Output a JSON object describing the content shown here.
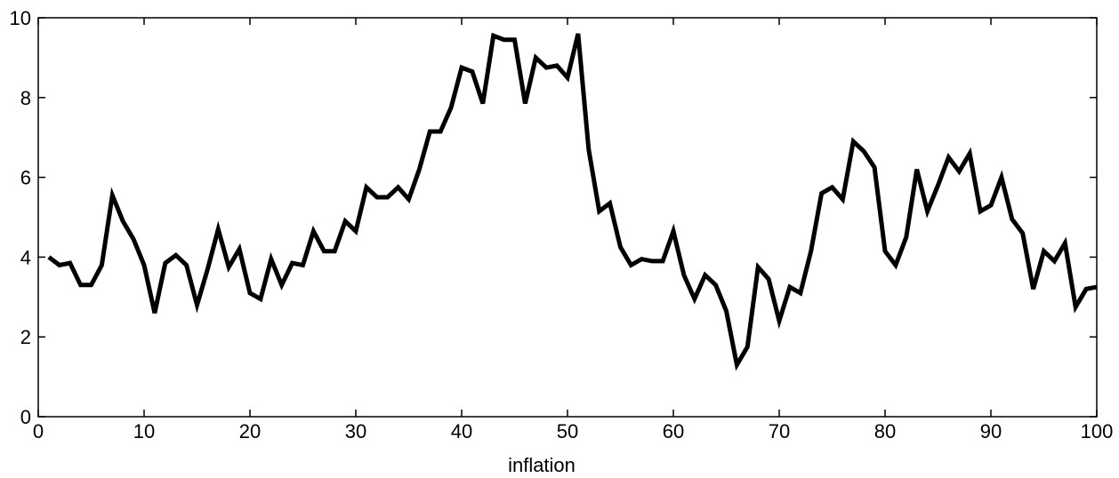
{
  "chart_data": {
    "type": "line",
    "title": "",
    "xlabel": "inflation",
    "ylabel": "",
    "xlim": [
      0,
      100
    ],
    "ylim": [
      0,
      10
    ],
    "x_ticks": [
      0,
      10,
      20,
      30,
      40,
      50,
      60,
      70,
      80,
      90,
      100
    ],
    "y_ticks": [
      0,
      2,
      4,
      6,
      8,
      10
    ],
    "grid": false,
    "line_color": "#000000",
    "series": [
      {
        "x": [
          1,
          2,
          3,
          4,
          5,
          6,
          7,
          8,
          9,
          10,
          11,
          12,
          13,
          14,
          15,
          16,
          17,
          18,
          19,
          20,
          21,
          22,
          23,
          24,
          25,
          26,
          27,
          28,
          29,
          30,
          31,
          32,
          33,
          34,
          35,
          36,
          37,
          38,
          39,
          40,
          41,
          42,
          43,
          44,
          45,
          46,
          47,
          48,
          49,
          50,
          51,
          52,
          53,
          54,
          55,
          56,
          57,
          58,
          59,
          60,
          61,
          62,
          63,
          64,
          65,
          66,
          67,
          68,
          69,
          70,
          71,
          72,
          73,
          74,
          75,
          76,
          77,
          78,
          79,
          80,
          81,
          82,
          83,
          84,
          85,
          86,
          87,
          88,
          89,
          90,
          91,
          92,
          93,
          94,
          95,
          96,
          97,
          98,
          99,
          100
        ],
        "values": [
          4.0,
          3.8,
          3.85,
          3.3,
          3.3,
          3.8,
          5.55,
          4.9,
          4.45,
          3.8,
          2.6,
          3.85,
          4.05,
          3.8,
          2.8,
          3.7,
          4.7,
          3.75,
          4.2,
          3.1,
          2.95,
          3.95,
          3.3,
          3.85,
          3.8,
          4.65,
          4.15,
          4.15,
          4.9,
          4.65,
          5.75,
          5.5,
          5.5,
          5.75,
          5.45,
          6.2,
          7.15,
          7.15,
          7.75,
          8.75,
          8.65,
          7.85,
          9.55,
          9.45,
          9.45,
          7.85,
          9.0,
          8.75,
          8.8,
          8.5,
          9.6,
          6.7,
          5.15,
          5.35,
          4.25,
          3.8,
          3.95,
          3.9,
          3.9,
          4.65,
          3.55,
          2.95,
          3.55,
          3.3,
          2.65,
          1.3,
          1.75,
          3.75,
          3.45,
          2.4,
          3.25,
          3.1,
          4.15,
          5.6,
          5.75,
          5.45,
          6.9,
          6.65,
          6.25,
          4.15,
          3.8,
          4.5,
          6.2,
          5.15,
          5.8,
          6.5,
          6.15,
          6.6,
          5.15,
          5.3,
          6.0,
          4.95,
          4.6,
          3.2,
          4.15,
          3.9,
          4.35,
          2.75,
          3.2,
          3.25
        ]
      }
    ]
  }
}
